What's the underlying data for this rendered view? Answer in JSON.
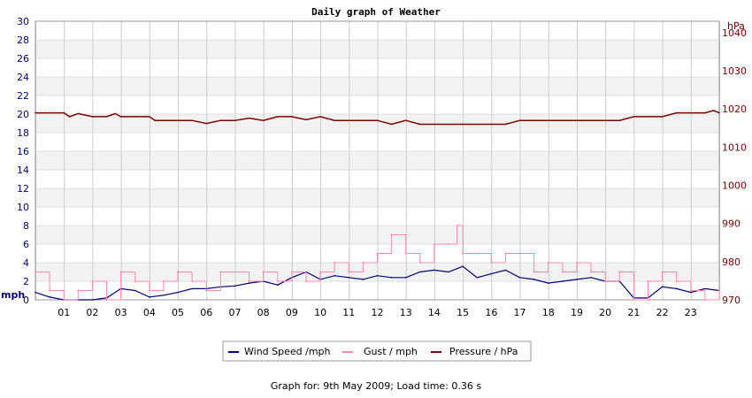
{
  "chart_data": {
    "type": "line",
    "title": "Daily graph of Weather",
    "left_axis": {
      "unit": "mph",
      "ylim": [
        0,
        30
      ],
      "ticks": [
        "0",
        "2",
        "4",
        "6",
        "8",
        "10",
        "12",
        "14",
        "16",
        "18",
        "20",
        "22",
        "24",
        "26",
        "28",
        "30"
      ]
    },
    "right_axis": {
      "unit": "hPa",
      "ylim": [
        970,
        1043
      ],
      "ticks": [
        "970",
        "980",
        "990",
        "1000",
        "1010",
        "1020",
        "1030",
        "1040"
      ]
    },
    "x_axis": {
      "ticks": [
        "01",
        "02",
        "03",
        "04",
        "05",
        "06",
        "07",
        "08",
        "09",
        "10",
        "11",
        "12",
        "13",
        "14",
        "15",
        "16",
        "17",
        "18",
        "19",
        "20",
        "21",
        "22",
        "23"
      ],
      "xlim": [
        0,
        24
      ]
    },
    "grid": true,
    "legend_position": "bottom",
    "series": [
      {
        "name": "Wind Speed /mph",
        "axis": "left",
        "color": "#000080",
        "x": [
          0,
          0.5,
          1,
          1.5,
          2,
          2.5,
          3,
          3.5,
          4,
          4.5,
          5,
          5.5,
          6,
          6.5,
          7,
          7.5,
          8,
          8.5,
          9,
          9.5,
          10,
          10.5,
          11,
          11.5,
          12,
          12.5,
          13,
          13.5,
          14,
          14.5,
          15,
          15.5,
          16,
          16.5,
          17,
          17.5,
          18,
          18.5,
          19,
          19.5,
          20,
          20.5,
          21,
          21.5,
          22,
          22.5,
          23,
          23.5,
          24
        ],
        "y": [
          0.8,
          0.3,
          0,
          0,
          0,
          0.2,
          1.2,
          1,
          0.3,
          0.5,
          0.8,
          1.2,
          1.2,
          1.4,
          1.5,
          1.8,
          2,
          1.6,
          2.4,
          3,
          2.2,
          2.6,
          2.4,
          2.2,
          2.6,
          2.4,
          2.4,
          3,
          3.2,
          3,
          3.6,
          2.4,
          2.8,
          3.2,
          2.4,
          2.2,
          1.8,
          2,
          2.2,
          2.4,
          2,
          2,
          0.2,
          0.2,
          1.4,
          1.2,
          0.8,
          1.2,
          1
        ]
      },
      {
        "name": "Gust / mph",
        "axis": "left",
        "color": "#ff88aa",
        "x": [
          0,
          0.5,
          1,
          1.5,
          2,
          2.5,
          3,
          3.5,
          4,
          4.5,
          5,
          5.5,
          6,
          6.5,
          7,
          7.5,
          8,
          8.5,
          9,
          9.5,
          10,
          10.5,
          11,
          11.5,
          12,
          12.5,
          13,
          13.5,
          14,
          14.5,
          14.8,
          15,
          15.5,
          16,
          16.5,
          17,
          17.5,
          18,
          18.5,
          19,
          19.5,
          20,
          20.5,
          21,
          21.5,
          22,
          22.5,
          23,
          23.5,
          24
        ],
        "y": [
          3,
          1,
          0,
          1,
          2,
          0,
          3,
          2,
          1,
          2,
          3,
          2,
          1,
          3,
          3,
          2,
          3,
          2,
          3,
          2,
          3,
          4,
          3,
          4,
          5,
          7,
          5,
          4,
          6,
          6,
          8,
          5,
          5,
          4,
          5,
          5,
          3,
          4,
          3,
          4,
          3,
          2,
          3,
          0,
          2,
          3,
          2,
          1,
          0,
          1
        ]
      },
      {
        "name": "Pressure / hPa",
        "axis": "right",
        "color": "#800000",
        "x": [
          0,
          1,
          1.2,
          1.5,
          2,
          2.5,
          2.8,
          3,
          3.5,
          4,
          4.2,
          4.5,
          5,
          5.5,
          6,
          6.5,
          7,
          7.5,
          8,
          8.5,
          9,
          9.5,
          10,
          10.5,
          11,
          11.5,
          12,
          12.5,
          13,
          13.5,
          14,
          15,
          16,
          16.5,
          17,
          17.5,
          18,
          19,
          20,
          20.5,
          21,
          21.5,
          22,
          22.5,
          23,
          23.5,
          23.8,
          24
        ],
        "y": [
          1019,
          1019,
          1018,
          1018.8,
          1018,
          1018,
          1018.8,
          1018,
          1018,
          1018,
          1017,
          1017,
          1017,
          1017,
          1016.2,
          1017,
          1017,
          1017.6,
          1017,
          1018,
          1018,
          1017.2,
          1018,
          1017,
          1017,
          1017,
          1017,
          1016,
          1017,
          1016,
          1016,
          1016,
          1016,
          1016,
          1017,
          1017,
          1017,
          1017,
          1017,
          1017,
          1018,
          1018,
          1018,
          1019,
          1019,
          1019,
          1019.6,
          1019
        ]
      }
    ]
  },
  "footer": "Graph for: 9th May 2009; Load time: 0.36 s"
}
